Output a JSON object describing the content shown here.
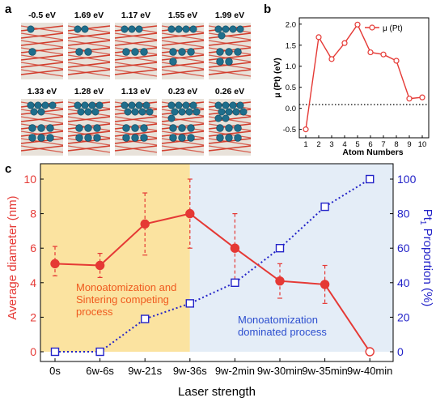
{
  "panel_a": {
    "letter": "a",
    "energies": [
      "-0.5 eV",
      "1.69 eV",
      "1.17 eV",
      "1.55 eV",
      "1.99 eV",
      "1.33 eV",
      "1.28 eV",
      "1.13 eV",
      "0.23 eV",
      "0.26 eV"
    ]
  },
  "panel_c_annotations": {
    "orange_line1": "Monoatomization and",
    "orange_line2": "Sintering competing",
    "orange_line3": "process",
    "blue_line1": "Monoatomization",
    "blue_line2": "dominated process"
  },
  "colors": {
    "red": "#e53935",
    "blue": "#2323c8",
    "orange_region": "#fbe3a0",
    "blue_region": "#e4edf7",
    "pt_atom": "#1f6e8c",
    "support_red": "#d23c2c",
    "support_white": "#e8e2da"
  },
  "chart_data": [
    {
      "panel": "b",
      "type": "line",
      "letter": "b",
      "x": [
        1,
        2,
        3,
        4,
        5,
        6,
        7,
        8,
        9,
        10
      ],
      "series": [
        {
          "name": "μ (Pt)",
          "values": [
            -0.5,
            1.69,
            1.17,
            1.55,
            1.99,
            1.33,
            1.28,
            1.13,
            0.23,
            0.26
          ],
          "color": "#e53935",
          "marker": "open-circle"
        }
      ],
      "xlabel": "Atom Numbers",
      "ylabel": "μ (Pt)  (eV)",
      "xticks": [
        "1",
        "2",
        "3",
        "4",
        "5",
        "6",
        "7",
        "8",
        "9",
        "10"
      ],
      "yticks": [
        "-0.5",
        "0.0",
        "0.5",
        "1.0",
        "1.5",
        "2.0"
      ],
      "xlim": [
        0.5,
        10.5
      ],
      "ylim": [
        -0.7,
        2.15
      ],
      "reference_line": {
        "y": 0,
        "style": "dotted"
      },
      "legend_position": "top-right",
      "grid": false
    },
    {
      "panel": "c",
      "type": "line",
      "letter": "c",
      "categories": [
        "0s",
        "6w-6s",
        "9w-21s",
        "9w-36s",
        "9w-2min",
        "9w-30min",
        "9w-35min",
        "9w-40min"
      ],
      "series": [
        {
          "name": "Average diameter",
          "axis": "left",
          "values": [
            5.1,
            5.0,
            7.4,
            8.0,
            6.0,
            4.1,
            3.9,
            0
          ],
          "error_upper": [
            1.0,
            0.7,
            1.8,
            2.0,
            2.0,
            1.0,
            1.1,
            0
          ],
          "error_lower": [
            0.7,
            0.7,
            1.8,
            2.0,
            2.0,
            1.0,
            1.1,
            0
          ],
          "color": "#e53935",
          "style": "solid",
          "marker": "filled-circle"
        },
        {
          "name": "Pt1 Proportion",
          "axis": "right",
          "values": [
            0,
            0,
            19,
            28,
            40,
            60,
            84,
            100
          ],
          "color": "#2323c8",
          "style": "dotted",
          "marker": "open-square"
        }
      ],
      "xlabel": "Laser strength",
      "ylabel_left": "Average diameter (nm)",
      "ylabel_right_main": "Pt",
      "ylabel_right_sub": "1",
      "ylabel_right_tail": " Proportion (%)",
      "yticks_left": [
        "0",
        "2",
        "4",
        "6",
        "8",
        "10"
      ],
      "yticks_right": [
        "0",
        "20",
        "40",
        "60",
        "80",
        "100"
      ],
      "ylim_left": [
        0,
        10
      ],
      "ylim_right": [
        0,
        100
      ],
      "regions": [
        {
          "from_category": 0,
          "to_category": 3,
          "color": "#fbe3a0"
        },
        {
          "from_category": 3,
          "to_category": 7,
          "color": "#e4edf7"
        }
      ],
      "grid": false
    }
  ]
}
